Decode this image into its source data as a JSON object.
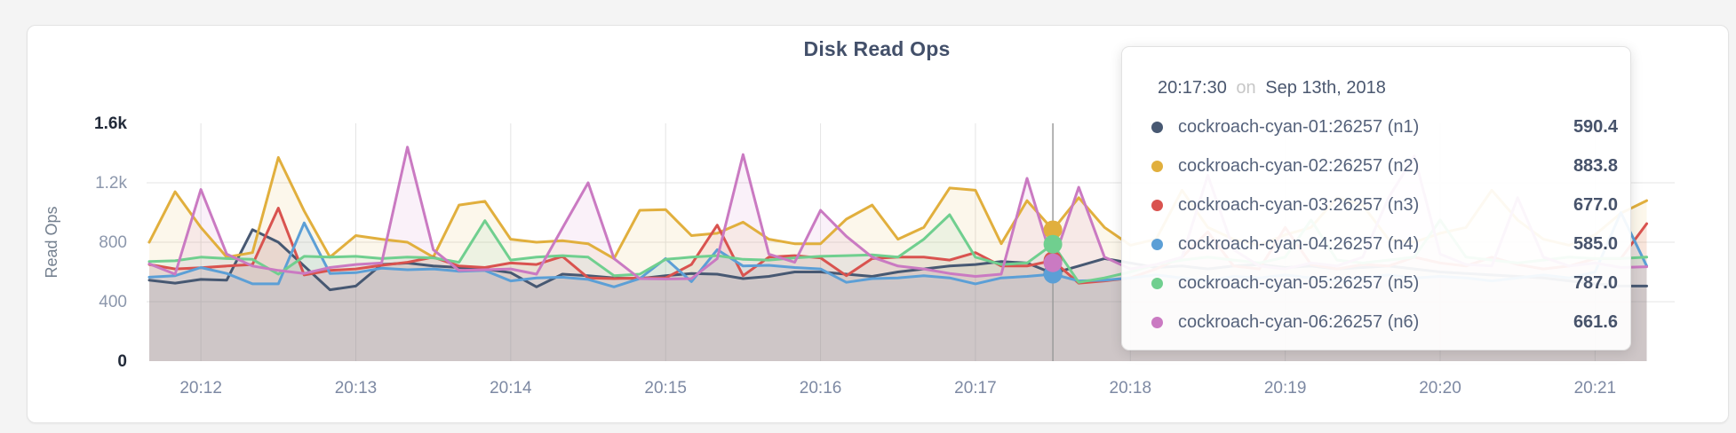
{
  "header": {
    "title": "Disk Read Ops"
  },
  "colors": {
    "page_bg": "#f4f4f4",
    "card_bg": "#ffffff",
    "grid": "#e4e4e4",
    "hover_line": "#9b9b9b"
  },
  "chart_data": {
    "type": "area",
    "title": "Disk Read Ops",
    "xlabel": "",
    "ylabel": "Read Ops",
    "ylim": [
      0,
      1600
    ],
    "grid": true,
    "legend_position": "tooltip-only",
    "y_ticks": [
      {
        "value": 1600,
        "label": "1.6k",
        "emphasis": true
      },
      {
        "value": 1200,
        "label": "1.2k",
        "emphasis": false
      },
      {
        "value": 800,
        "label": "800",
        "emphasis": false
      },
      {
        "value": 400,
        "label": "400",
        "emphasis": false
      },
      {
        "value": 0,
        "label": "0",
        "emphasis": true
      }
    ],
    "x_ticks": [
      "20:12",
      "20:13",
      "20:14",
      "20:15",
      "20:16",
      "20:17",
      "20:18",
      "20:19",
      "20:20",
      "20:21"
    ],
    "start_time": "20:11:40",
    "interval_seconds": 10,
    "hover_index": 35,
    "series": [
      {
        "name": "cockroach-cyan-01:26257 (n1)",
        "color": "#475872",
        "values": [
          545,
          525,
          550,
          545,
          885,
          800,
          640,
          480,
          505,
          650,
          660,
          640,
          630,
          620,
          595,
          500,
          585,
          575,
          560,
          555,
          575,
          590,
          585,
          555,
          570,
          600,
          600,
          585,
          570,
          600,
          620,
          640,
          650,
          670,
          660,
          590.4,
          640,
          690,
          660,
          630,
          640,
          620,
          640,
          650,
          630,
          640,
          620,
          630,
          640,
          620,
          600,
          590,
          580,
          570,
          560,
          540,
          520,
          505,
          505
        ]
      },
      {
        "name": "cockroach-cyan-02:26257 (n2)",
        "color": "#E1AF3D",
        "values": [
          800,
          1140,
          900,
          700,
          730,
          1370,
          1010,
          700,
          845,
          820,
          800,
          700,
          1050,
          1075,
          820,
          800,
          810,
          790,
          690,
          1015,
          1020,
          845,
          860,
          935,
          820,
          790,
          790,
          955,
          1050,
          820,
          900,
          1165,
          1150,
          790,
          1080,
          883.8,
          1100,
          900,
          780,
          820,
          1150,
          900,
          820,
          780,
          850,
          900,
          1100,
          1050,
          820,
          800,
          860,
          900,
          1150,
          950,
          820,
          780,
          850,
          995,
          1080
        ]
      },
      {
        "name": "cockroach-cyan-03:26257 (n3)",
        "color": "#D9534F",
        "values": [
          650,
          620,
          628,
          640,
          650,
          1030,
          580,
          610,
          620,
          645,
          665,
          700,
          640,
          630,
          660,
          650,
          705,
          560,
          555,
          560,
          560,
          650,
          915,
          575,
          700,
          710,
          695,
          575,
          690,
          700,
          700,
          680,
          730,
          640,
          640,
          677,
          525,
          540,
          560,
          620,
          700,
          870,
          640,
          620,
          900,
          650,
          620,
          650,
          640,
          700,
          660,
          640,
          700,
          650,
          620,
          640,
          690,
          690,
          925
        ]
      },
      {
        "name": "cockroach-cyan-04:26257 (n4)",
        "color": "#5C9FD6",
        "values": [
          565,
          575,
          630,
          590,
          520,
          520,
          930,
          590,
          595,
          625,
          615,
          620,
          605,
          610,
          540,
          560,
          565,
          550,
          500,
          555,
          690,
          535,
          750,
          640,
          645,
          630,
          620,
          530,
          555,
          560,
          575,
          560,
          520,
          560,
          570,
          585,
          540,
          545,
          560,
          580,
          560,
          540,
          570,
          560,
          580,
          560,
          540,
          560,
          580,
          560,
          570,
          560,
          540,
          560,
          580,
          560,
          600,
          1000,
          640
        ]
      },
      {
        "name": "cockroach-cyan-05:26257 (n5)",
        "color": "#70CF8F",
        "values": [
          670,
          675,
          700,
          690,
          685,
          585,
          705,
          700,
          705,
          690,
          700,
          695,
          665,
          945,
          680,
          700,
          710,
          700,
          575,
          585,
          685,
          700,
          710,
          685,
          680,
          695,
          705,
          710,
          715,
          700,
          820,
          985,
          700,
          650,
          660,
          787,
          530,
          560,
          600,
          650,
          680,
          700,
          680,
          660,
          700,
          950,
          680,
          660,
          680,
          700,
          950,
          700,
          680,
          660,
          680,
          700,
          690,
          690,
          700
        ]
      },
      {
        "name": "cockroach-cyan-06:26257 (n6)",
        "color": "#CA7AC2",
        "values": [
          655,
          585,
          1155,
          720,
          640,
          610,
          590,
          630,
          650,
          660,
          1440,
          750,
          610,
          615,
          620,
          585,
          895,
          1200,
          690,
          555,
          553,
          555,
          690,
          1390,
          720,
          665,
          1015,
          840,
          700,
          640,
          620,
          590,
          570,
          585,
          1230,
          661.6,
          1170,
          700,
          620,
          650,
          700,
          1250,
          750,
          640,
          620,
          660,
          640,
          700,
          1100,
          1380,
          720,
          650,
          640,
          1100,
          700,
          640,
          660,
          630,
          635
        ]
      }
    ]
  },
  "tooltip": {
    "time": "20:17:30",
    "on_word": "on",
    "date": "Sep 13th, 2018",
    "rows": [
      {
        "name": "cockroach-cyan-01:26257 (n1)",
        "value": "590.4",
        "color": "#475872"
      },
      {
        "name": "cockroach-cyan-02:26257 (n2)",
        "value": "883.8",
        "color": "#E1AF3D"
      },
      {
        "name": "cockroach-cyan-03:26257 (n3)",
        "value": "677.0",
        "color": "#D9534F"
      },
      {
        "name": "cockroach-cyan-04:26257 (n4)",
        "value": "585.0",
        "color": "#5C9FD6"
      },
      {
        "name": "cockroach-cyan-05:26257 (n5)",
        "value": "787.0",
        "color": "#70CF8F"
      },
      {
        "name": "cockroach-cyan-06:26257 (n6)",
        "value": "661.6",
        "color": "#CA7AC2"
      }
    ]
  }
}
